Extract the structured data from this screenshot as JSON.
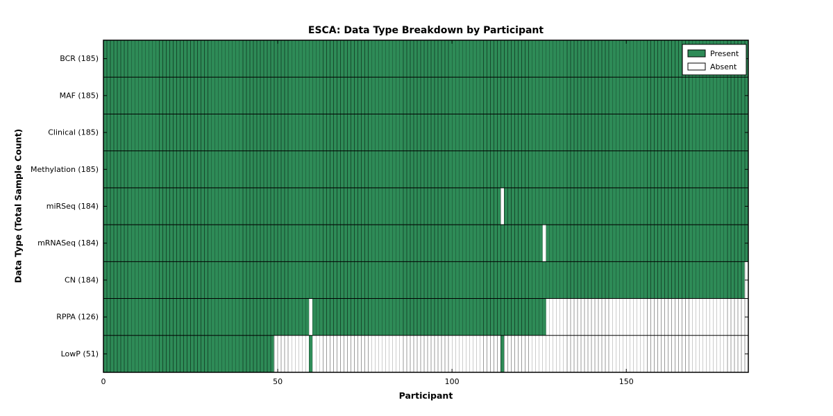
{
  "chart_data": {
    "type": "heatmap",
    "title": "ESCA: Data Type Breakdown by Participant",
    "xlabel": "Participant",
    "ylabel": "Data Type (Total Sample Count)",
    "xlim": [
      0,
      185
    ],
    "xticks": [
      0,
      50,
      100,
      150
    ],
    "grid": false,
    "legend_position": "upper right",
    "present_color": "#2e8b57",
    "present_edge": "#16492c",
    "absent_color": "#ffffff",
    "absent_edge": "#9a9a9a",
    "legend": [
      {
        "label": "Present",
        "color": "#2e8b57"
      },
      {
        "label": "Absent",
        "color": "#ffffff"
      }
    ],
    "rows": [
      {
        "name": "BCR",
        "label": "BCR (185)",
        "count": 185,
        "absent_ranges": []
      },
      {
        "name": "MAF",
        "label": "MAF (185)",
        "count": 185,
        "absent_ranges": []
      },
      {
        "name": "Clinical",
        "label": "Clinical (185)",
        "count": 185,
        "absent_ranges": []
      },
      {
        "name": "Methylation",
        "label": "Methylation (185)",
        "count": 185,
        "absent_ranges": []
      },
      {
        "name": "miRSeq",
        "label": "miRSeq (184)",
        "count": 184,
        "absent_ranges": [
          [
            114,
            114
          ]
        ]
      },
      {
        "name": "mRNASeq",
        "label": "mRNASeq (184)",
        "count": 184,
        "absent_ranges": [
          [
            126,
            126
          ]
        ]
      },
      {
        "name": "CN",
        "label": "CN (184)",
        "count": 184,
        "absent_ranges": [
          [
            184,
            184
          ]
        ]
      },
      {
        "name": "RPPA",
        "label": "RPPA (126)",
        "count": 126,
        "absent_ranges": [
          [
            59,
            59
          ],
          [
            127,
            184
          ]
        ]
      },
      {
        "name": "LowP",
        "label": "LowP (51)",
        "count": 51,
        "absent_ranges": [
          [
            49,
            58
          ],
          [
            60,
            113
          ],
          [
            115,
            184
          ]
        ]
      }
    ]
  }
}
